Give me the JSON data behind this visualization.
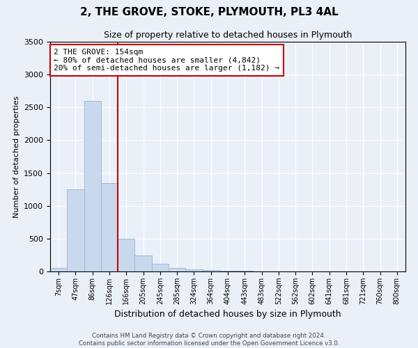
{
  "title": "2, THE GROVE, STOKE, PLYMOUTH, PL3 4AL",
  "subtitle": "Size of property relative to detached houses in Plymouth",
  "xlabel": "Distribution of detached houses by size in Plymouth",
  "ylabel": "Number of detached properties",
  "bar_labels": [
    "7sqm",
    "47sqm",
    "86sqm",
    "126sqm",
    "166sqm",
    "205sqm",
    "245sqm",
    "285sqm",
    "324sqm",
    "364sqm",
    "404sqm",
    "443sqm",
    "483sqm",
    "522sqm",
    "562sqm",
    "602sqm",
    "641sqm",
    "681sqm",
    "721sqm",
    "760sqm",
    "800sqm"
  ],
  "bar_values": [
    50,
    1250,
    2600,
    1350,
    500,
    240,
    120,
    55,
    30,
    20,
    15,
    10,
    5,
    2,
    2,
    1,
    1,
    1,
    0,
    0,
    0
  ],
  "bar_color": "#c9d9ed",
  "bar_edge_color": "#a0b8d8",
  "vline_color": "#cc0000",
  "ylim": [
    0,
    3500
  ],
  "annotation_text": "2 THE GROVE: 154sqm\n← 80% of detached houses are smaller (4,842)\n20% of semi-detached houses are larger (1,182) →",
  "annotation_box_color": "white",
  "annotation_box_edge": "#cc0000",
  "footer_line1": "Contains HM Land Registry data © Crown copyright and database right 2024.",
  "footer_line2": "Contains public sector information licensed under the Open Government Licence v3.0.",
  "background_color": "#eaf0f8",
  "plot_background": "#eaf0f8"
}
